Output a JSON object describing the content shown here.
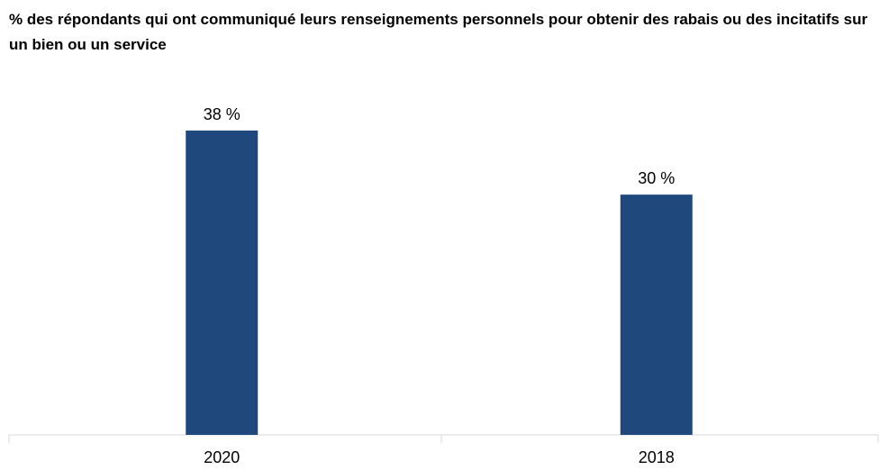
{
  "chart_data": {
    "type": "bar",
    "title": "% des répondants qui ont communiqué leurs renseignements personnels pour obtenir des rabais ou des incitatifs sur un bien ou un service",
    "categories": [
      "2020",
      "2018"
    ],
    "values": [
      38,
      30
    ],
    "value_labels": [
      "38 %",
      "30 %"
    ],
    "color": "#1f497d"
  }
}
